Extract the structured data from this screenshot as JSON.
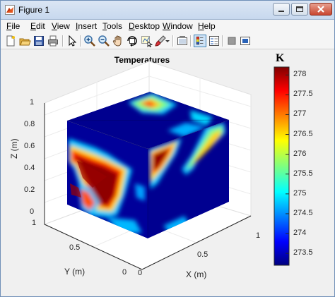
{
  "window": {
    "title": "Figure 1",
    "icon": "matlab-figure-icon"
  },
  "window_controls": {
    "minimize": "minimize-icon",
    "restore": "restore-icon",
    "close": "close-icon"
  },
  "menu": {
    "items": [
      {
        "label": "File",
        "mnemonic": "F"
      },
      {
        "label": "Edit",
        "mnemonic": "E"
      },
      {
        "label": "View",
        "mnemonic": "V"
      },
      {
        "label": "Insert",
        "mnemonic": "I"
      },
      {
        "label": "Tools",
        "mnemonic": "T"
      },
      {
        "label": "Desktop",
        "mnemonic": "D"
      },
      {
        "label": "Window",
        "mnemonic": "W"
      },
      {
        "label": "Help",
        "mnemonic": "H"
      }
    ]
  },
  "toolbar": {
    "buttons": [
      "new-figure-icon",
      "open-file-icon",
      "save-icon",
      "print-icon",
      "edit-plot-icon",
      "zoom-in-icon",
      "zoom-out-icon",
      "pan-icon",
      "rotate-3d-icon",
      "data-cursor-icon",
      "brush-icon",
      "link-plot-icon",
      "insert-colorbar-icon",
      "insert-legend-icon",
      "hide-plot-tools-icon",
      "show-plot-tools-icon"
    ]
  },
  "plot": {
    "title": "Temperatures",
    "xlabel": "X (m)",
    "ylabel": "Y (m)",
    "zlabel": "Z (m)",
    "z_ticks": [
      "0",
      "0.2",
      "0.4",
      "0.6",
      "0.8",
      "1"
    ],
    "y_ticks": [
      "0",
      "0.5",
      "1"
    ],
    "x_ticks": [
      "0",
      "0.5",
      "1"
    ]
  },
  "colorbar": {
    "unit": "K",
    "ticks": [
      "278",
      "277.5",
      "277",
      "276.5",
      "276",
      "275.5",
      "275",
      "274.5",
      "274",
      "273.5"
    ],
    "min": 273.2,
    "max": 278.2,
    "colormap": "jet"
  },
  "colors": {
    "cold": "#00007f",
    "hot": "#7f0000",
    "accent": "#3c7fb1"
  }
}
